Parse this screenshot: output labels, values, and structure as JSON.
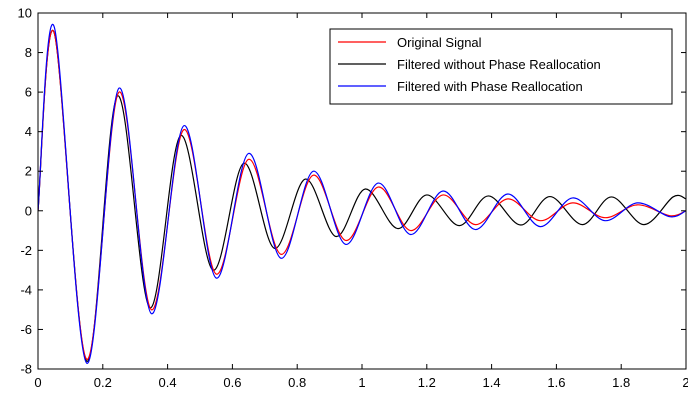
{
  "chart_data": {
    "type": "line",
    "title": "",
    "xlabel": "",
    "ylabel": "",
    "xlim": [
      0,
      2
    ],
    "ylim": [
      -8,
      10
    ],
    "grid": false,
    "legend_position": "top-right",
    "x_ticks": [
      0,
      0.2,
      0.4,
      0.6,
      0.8,
      1,
      1.2,
      1.4,
      1.6,
      1.8,
      2
    ],
    "x_tick_labels": [
      "0",
      "0.2",
      "0.4",
      "0.6",
      "0.8",
      "1",
      "1.2",
      "1.4",
      "1.6",
      "1.8",
      "2"
    ],
    "y_ticks": [
      -8,
      -6,
      -4,
      -2,
      0,
      2,
      4,
      6,
      8,
      10
    ],
    "y_tick_labels": [
      "-8",
      "-6",
      "-4",
      "-2",
      "0",
      "2",
      "4",
      "6",
      "8",
      "10"
    ],
    "series": [
      {
        "name": "Original Signal",
        "color": "#ff0000",
        "x": [
          0,
          0.05,
          0.15,
          0.25,
          0.35,
          0.45,
          0.55,
          0.65,
          0.75,
          0.85,
          0.95,
          1.05,
          1.15,
          1.25,
          1.35,
          1.45,
          1.55,
          1.65,
          1.75,
          1.85,
          1.95,
          2.0
        ],
        "y": [
          0,
          9.0,
          -7.5,
          6.0,
          -5.0,
          4.1,
          -3.2,
          2.6,
          -2.2,
          1.8,
          -1.5,
          1.2,
          -1.0,
          0.8,
          -0.7,
          0.6,
          -0.5,
          0.4,
          -0.35,
          0.3,
          -0.25,
          0
        ]
      },
      {
        "name": "Filtered without Phase Reallocation",
        "color": "#000000",
        "x": [
          0,
          0.05,
          0.15,
          0.245,
          0.345,
          0.44,
          0.54,
          0.635,
          0.73,
          0.825,
          0.92,
          1.01,
          1.11,
          1.2,
          1.3,
          1.39,
          1.49,
          1.58,
          1.68,
          1.77,
          1.87,
          1.96,
          2.0
        ],
        "y": [
          0,
          9.0,
          -7.6,
          5.8,
          -4.9,
          3.8,
          -3.0,
          2.4,
          -1.9,
          1.6,
          -1.3,
          1.1,
          -0.9,
          0.8,
          -0.75,
          0.75,
          -0.72,
          0.72,
          -0.7,
          0.7,
          -0.7,
          0.7,
          0.6
        ]
      },
      {
        "name": "Filtered with Phase Reallocation",
        "color": "#0000ff",
        "x": [
          0,
          0.05,
          0.15,
          0.25,
          0.35,
          0.45,
          0.55,
          0.65,
          0.75,
          0.85,
          0.95,
          1.05,
          1.15,
          1.25,
          1.35,
          1.45,
          1.55,
          1.65,
          1.75,
          1.85,
          1.95,
          2.0
        ],
        "y": [
          0,
          9.3,
          -7.7,
          6.2,
          -5.2,
          4.3,
          -3.4,
          2.9,
          -2.4,
          2.0,
          -1.7,
          1.4,
          -1.2,
          1.0,
          -0.95,
          0.85,
          -0.8,
          0.65,
          -0.5,
          0.4,
          -0.3,
          0
        ]
      }
    ]
  }
}
